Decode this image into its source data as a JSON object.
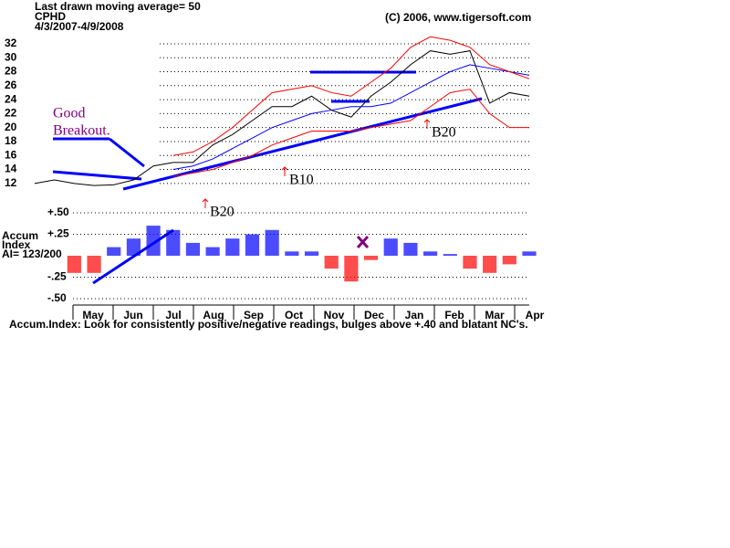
{
  "header": {
    "title": "Last drawn moving average= 50",
    "symbol": "CPHD",
    "dates": "4/3/2007-4/9/2008",
    "copyright": "(C) 2006, www.tigersoft.com"
  },
  "chart_data": [
    {
      "type": "line",
      "yticks": [
        12,
        14,
        16,
        18,
        20,
        22,
        24,
        26,
        28,
        30,
        32
      ],
      "ylim": [
        10.8,
        33.3
      ],
      "grid": true,
      "series": [
        {
          "color": "#000000",
          "values": [
            12,
            12.5,
            12,
            11.7,
            11.8,
            12.5,
            14.5,
            15,
            15,
            17.5,
            19,
            21,
            23,
            23,
            24.5,
            22.5,
            21.5,
            24.5,
            26.5,
            29,
            31,
            30.5,
            31,
            23.5,
            25,
            24.5
          ]
        },
        {
          "color": "#0000ff",
          "values": [
            null,
            null,
            null,
            null,
            null,
            null,
            null,
            14,
            14.5,
            15.5,
            17,
            18.5,
            20,
            21,
            22,
            22.5,
            23,
            23,
            23.5,
            25,
            26.5,
            28,
            29,
            28.5,
            28,
            27.5
          ]
        },
        {
          "color": "#ff0000",
          "values": [
            null,
            null,
            null,
            null,
            null,
            null,
            null,
            16,
            16.5,
            18,
            20,
            22.5,
            25,
            25.5,
            26,
            25,
            24.5,
            26.5,
            28.5,
            31.5,
            33,
            32.5,
            31.5,
            29,
            28,
            27
          ]
        },
        {
          "color": "#ff0000",
          "values": [
            null,
            null,
            null,
            null,
            null,
            null,
            null,
            13,
            13.5,
            14,
            15,
            16,
            17.5,
            18.5,
            19.5,
            19.5,
            19.5,
            20,
            20.5,
            21,
            23,
            25,
            25.5,
            22,
            20,
            20
          ]
        }
      ],
      "annotations": [
        "Good",
        "Breakout.",
        "B20",
        "B10",
        "B20"
      ]
    },
    {
      "type": "histogram",
      "title": [
        "Accum",
        "Index",
        "AI= 123/200"
      ],
      "ylim": [
        -0.55,
        0.55
      ],
      "yticks": [
        {
          "value": 0.5,
          "label": "+.50"
        },
        {
          "value": 0.25,
          "label": "+.25"
        },
        {
          "value": -0.25,
          "label": "-.25"
        },
        {
          "value": -0.5,
          "label": "-.50"
        }
      ],
      "grid": true,
      "positive_color": "#0000ff",
      "negative_color": "#ff0000",
      "values": [
        null,
        null,
        -0.2,
        -0.2,
        0.1,
        0.2,
        0.35,
        0.3,
        0.15,
        0.1,
        0.2,
        0.25,
        0.3,
        0.05,
        0.05,
        -0.15,
        -0.3,
        -0.05,
        0.2,
        0.15,
        0.05,
        0.02,
        -0.15,
        -0.2,
        -0.1,
        0.05
      ],
      "categories": [
        "May",
        "Jun",
        "Jul",
        "Aug",
        "Sep",
        "Oct",
        "Nov",
        "Dec",
        "Jan",
        "Feb",
        "Mar",
        "Apr"
      ],
      "note": "Accum.Index: Look for consistently positive/negative readings, bulges above +.40 and blatant NC's."
    }
  ]
}
